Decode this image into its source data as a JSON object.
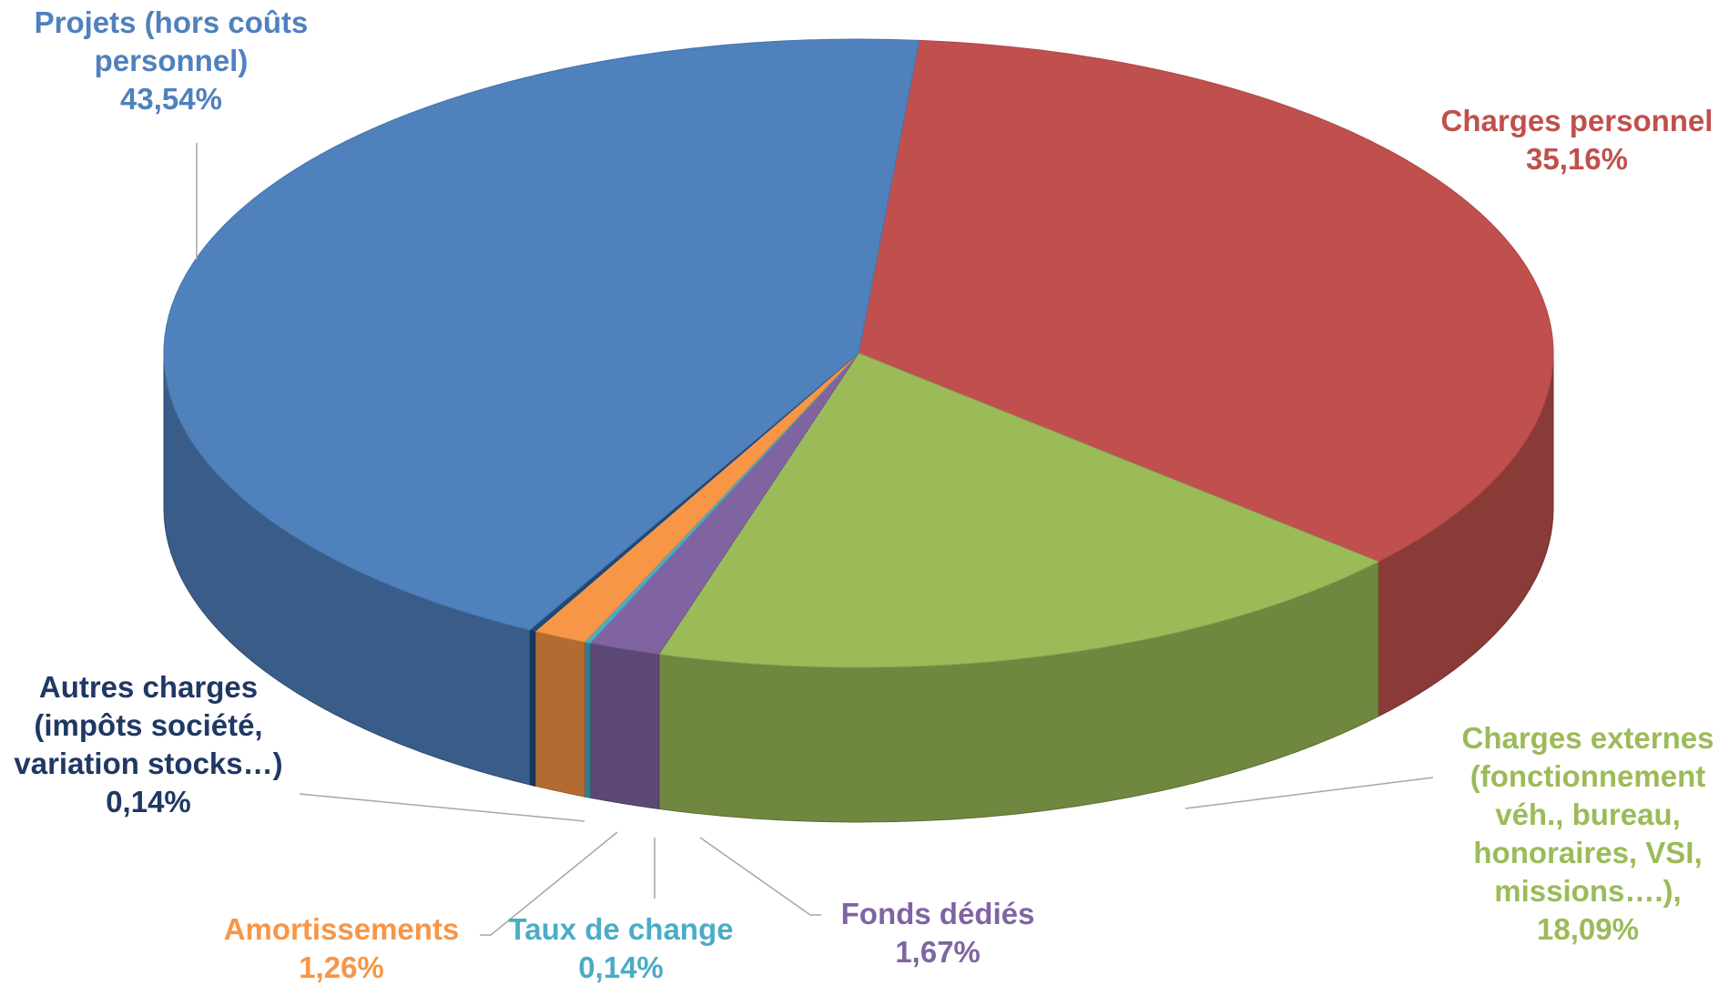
{
  "chart_data": {
    "type": "pie3d",
    "categories": [
      "Charges personnel",
      "Charges externes (fonctionnement véh., bureau, honoraires, VSI, missions….),",
      "Fonds dédiés",
      "Taux de change",
      "Amortissements",
      "Autres charges (impôts société, variation stocks…)",
      "Projets (hors coûts personnel)"
    ],
    "values": [
      35.16,
      18.09,
      1.67,
      0.14,
      1.26,
      0.14,
      43.54
    ],
    "value_labels": [
      "35,16%",
      "18,09%",
      "1,67%",
      "0,14%",
      "1,26%",
      "0,14%",
      "43,54%"
    ],
    "colors": [
      "#c0504d",
      "#9bbb59",
      "#8064a2",
      "#4bacc6",
      "#f79646",
      "#1f497d",
      "#4f81bd"
    ]
  }
}
